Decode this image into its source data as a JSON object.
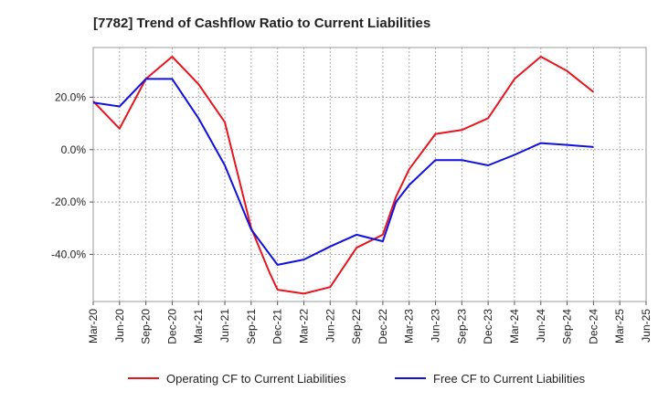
{
  "chart_data": {
    "type": "line",
    "title": "[7782]  Trend of Cashflow Ratio to Current Liabilities",
    "x_categories": [
      "Mar-20",
      "Jun-20",
      "Sep-20",
      "Dec-20",
      "Mar-21",
      "Jun-21",
      "Sep-21",
      "Dec-21",
      "Mar-22",
      "Jun-22",
      "Sep-22",
      "Dec-22",
      "Mar-23",
      "Jun-23",
      "Sep-23",
      "Dec-23",
      "Mar-24",
      "Jun-24",
      "Sep-24",
      "Dec-24",
      "Mar-25",
      "Jun-25"
    ],
    "y_ticks": [
      20,
      0,
      -20,
      -40
    ],
    "y_tick_labels": [
      "20.0%",
      "0.0%",
      "-20.0%",
      "-40.0%"
    ],
    "ylim": [
      -58,
      39
    ],
    "grid": true,
    "legend_position": "bottom",
    "series": [
      {
        "name": "Operating CF to Current Liabilities",
        "color": "#e8141e",
        "points": [
          {
            "x": 0.0,
            "y": 18.5
          },
          {
            "x": 1.0,
            "y": 8.0
          },
          {
            "x": 2.0,
            "y": 27.0
          },
          {
            "x": 2.7,
            "y": 33.0
          },
          {
            "x": 3.0,
            "y": 35.5
          },
          {
            "x": 4.0,
            "y": 25.0
          },
          {
            "x": 5.0,
            "y": 10.5
          },
          {
            "x": 6.0,
            "y": -30.0
          },
          {
            "x": 6.7,
            "y": -47.0
          },
          {
            "x": 7.0,
            "y": -53.5
          },
          {
            "x": 8.0,
            "y": -55.0
          },
          {
            "x": 9.0,
            "y": -52.5
          },
          {
            "x": 10.0,
            "y": -37.5
          },
          {
            "x": 11.0,
            "y": -32.5
          },
          {
            "x": 11.5,
            "y": -18.0
          },
          {
            "x": 12.0,
            "y": -7.5
          },
          {
            "x": 13.0,
            "y": 6.0
          },
          {
            "x": 14.0,
            "y": 7.5
          },
          {
            "x": 15.0,
            "y": 12.0
          },
          {
            "x": 16.0,
            "y": 27.0
          },
          {
            "x": 17.0,
            "y": 35.5
          },
          {
            "x": 18.0,
            "y": 30.0
          },
          {
            "x": 19.0,
            "y": 22.0
          }
        ]
      },
      {
        "name": "Free CF to Current Liabilities",
        "color": "#1010e0",
        "points": [
          {
            "x": 0.0,
            "y": 18.0
          },
          {
            "x": 1.0,
            "y": 16.5
          },
          {
            "x": 2.0,
            "y": 27.0
          },
          {
            "x": 3.0,
            "y": 27.0
          },
          {
            "x": 4.0,
            "y": 12.0
          },
          {
            "x": 5.0,
            "y": -6.0
          },
          {
            "x": 6.0,
            "y": -30.5
          },
          {
            "x": 7.0,
            "y": -44.0
          },
          {
            "x": 8.0,
            "y": -42.0
          },
          {
            "x": 9.0,
            "y": -37.0
          },
          {
            "x": 10.0,
            "y": -32.5
          },
          {
            "x": 11.0,
            "y": -35.0
          },
          {
            "x": 11.5,
            "y": -20.0
          },
          {
            "x": 12.0,
            "y": -13.5
          },
          {
            "x": 13.0,
            "y": -4.0
          },
          {
            "x": 14.0,
            "y": -4.0
          },
          {
            "x": 15.0,
            "y": -6.0
          },
          {
            "x": 16.0,
            "y": -2.0
          },
          {
            "x": 17.0,
            "y": 2.5
          },
          {
            "x": 18.0,
            "y": 1.8
          },
          {
            "x": 19.0,
            "y": 1.0
          }
        ]
      }
    ]
  }
}
